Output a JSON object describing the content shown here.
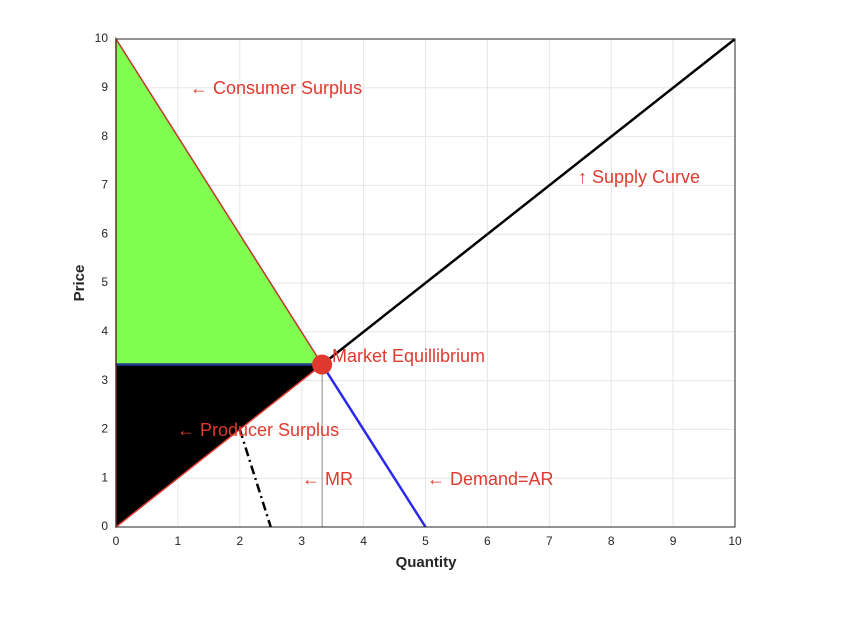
{
  "chart_data": {
    "type": "line",
    "xlabel": "Quantity",
    "ylabel": "Price",
    "xlim": [
      0,
      10
    ],
    "ylim": [
      0,
      10
    ],
    "xticks": [
      0,
      1,
      2,
      3,
      4,
      5,
      6,
      7,
      8,
      9,
      10
    ],
    "yticks": [
      0,
      1,
      2,
      3,
      4,
      5,
      6,
      7,
      8,
      9,
      10
    ],
    "grid": true,
    "areas": [
      {
        "color": "#80ff50",
        "edge_color": "#c0392b",
        "x": [
          0,
          3.33,
          0
        ],
        "values": [
          10,
          3.33,
          3.33
        ]
      },
      {
        "color": "#000000",
        "edge_color": "#e03a2e",
        "x": [
          0,
          3.33,
          0
        ],
        "values": [
          0,
          3.33,
          3.33
        ]
      }
    ],
    "series": [
      {
        "color": "#1f3a8a",
        "x": [
          0,
          3.33
        ],
        "values": [
          3.33,
          3.33
        ]
      },
      {
        "color": "#2a2aee",
        "x": [
          3.33,
          5
        ],
        "values": [
          3.33,
          0
        ]
      },
      {
        "color": "#000000",
        "x": [
          3.33,
          10
        ],
        "values": [
          3.33,
          10
        ]
      },
      {
        "color": "#000000",
        "dashed": true,
        "x": [
          2,
          2.5
        ],
        "values": [
          2,
          0
        ]
      },
      {
        "color": "#888888",
        "thin": true,
        "x": [
          3.33,
          3.33
        ],
        "values": [
          0,
          3.33
        ]
      }
    ],
    "point": {
      "color": "#e03a2e",
      "x": 3.33,
      "y": 3.33
    },
    "annotations": [
      "← Consumer Surplus",
      "↑ Supply Curve",
      "Market Equillibrium",
      "← Producer Surplus",
      "← MR",
      "← Demand=AR"
    ],
    "annotation_color": "#e03a2e"
  }
}
